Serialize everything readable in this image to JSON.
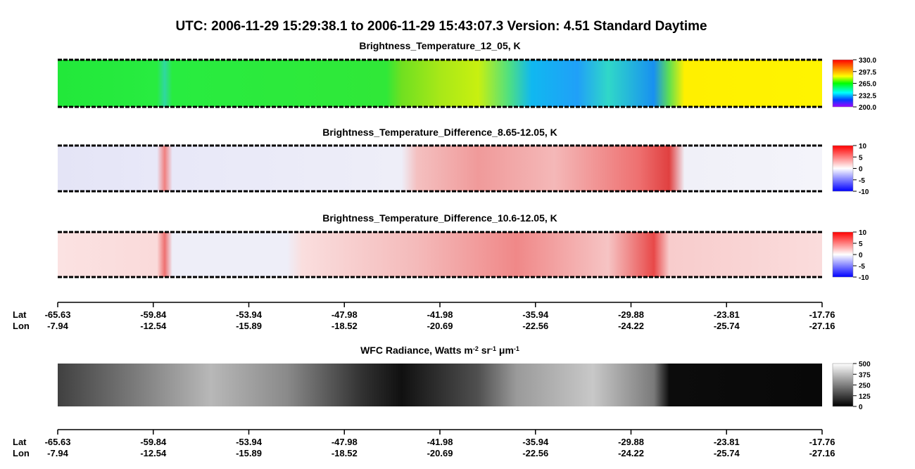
{
  "title": "UTC:  2006-11-29   15:29:38.1  to  2006-11-29   15:43:07.3    Version: 4.51  Standard Daytime",
  "panels": [
    {
      "title": "Brightness_Temperature_12_05, K",
      "colorbar": [
        "330.0",
        "297.5",
        "265.0",
        "232.5",
        "200.0"
      ]
    },
    {
      "title": "Brightness_Temperature_Difference_8.65-12.05, K",
      "colorbar": [
        "10",
        "5",
        "0",
        "-5",
        "-10"
      ]
    },
    {
      "title": "Brightness_Temperature_Difference_10.6-12.05, K",
      "colorbar": [
        "10",
        "5",
        "0",
        "-5",
        "-10"
      ]
    },
    {
      "title_parts": [
        "WFC Radiance, Watts m",
        "-2",
        " sr",
        "-1",
        " μm",
        "-1"
      ],
      "colorbar": [
        "500",
        "375",
        "250",
        "125",
        "0"
      ]
    }
  ],
  "axes": [
    {
      "lat_label": "Lat",
      "lon_label": "Lon",
      "lat": [
        "-65.63",
        "-59.84",
        "-53.94",
        "-47.98",
        "-41.98",
        "-35.94",
        "-29.88",
        "-23.81",
        "-17.76"
      ],
      "lon": [
        "-7.94",
        "-12.54",
        "-15.89",
        "-18.52",
        "-20.69",
        "-22.56",
        "-24.22",
        "-25.74",
        "-27.16"
      ]
    },
    {
      "lat_label": "Lat",
      "lon_label": "Lon",
      "lat": [
        "-65.63",
        "-59.84",
        "-53.94",
        "-47.98",
        "-41.98",
        "-35.94",
        "-29.88",
        "-23.81",
        "-17.76"
      ],
      "lon": [
        "-7.94",
        "-12.54",
        "-15.89",
        "-18.52",
        "-20.69",
        "-22.56",
        "-24.22",
        "-25.74",
        "-27.16"
      ]
    }
  ]
}
